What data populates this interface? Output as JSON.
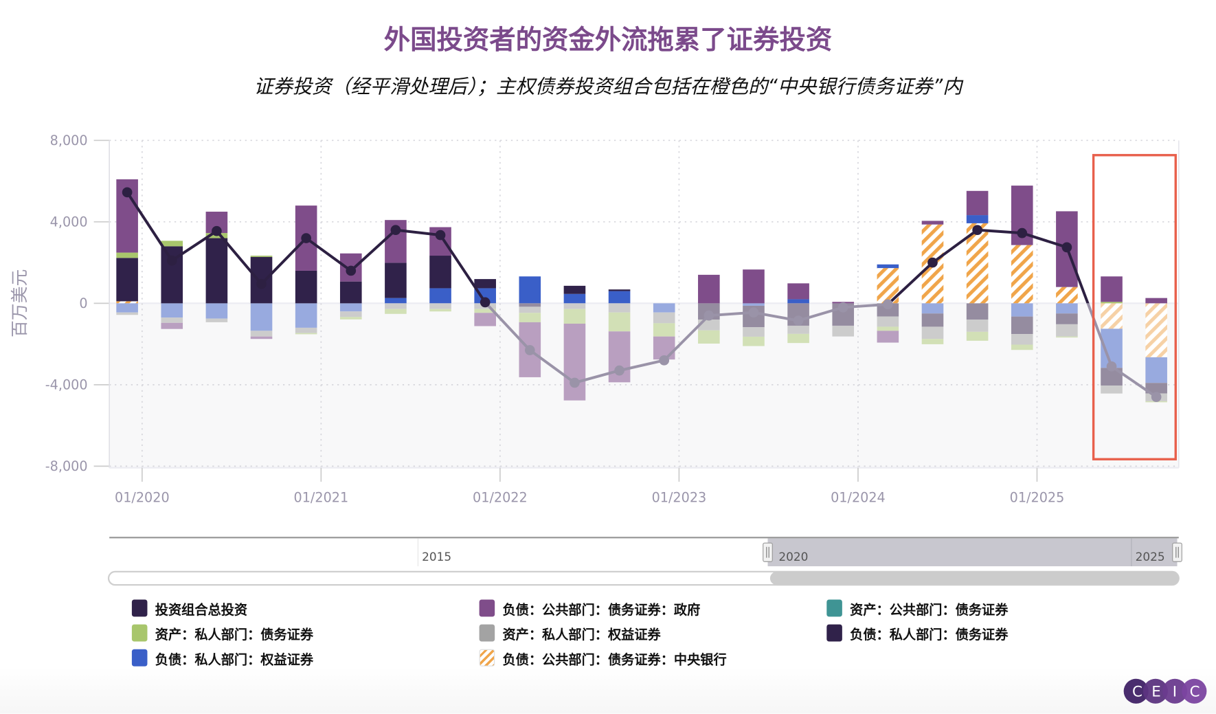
{
  "title": "外国投资者的资金外流拖累了证券投资",
  "subtitle": "证券投资（经平滑处理后）；主权债券投资组合包括在橙色的“中央银行债务证券”内",
  "logo_text": "CEIC",
  "navigator": {
    "labels": [
      "2015",
      "2020",
      "2025"
    ]
  },
  "colors": {
    "title": "#7b4a8b",
    "highlight_box": "#e8604c",
    "total_line_positive": "#2d2042",
    "total_line_negative": "#9a93a8"
  },
  "legend": [
    {
      "key": "total",
      "label": "投资组合总投资",
      "color": "#30224a"
    },
    {
      "key": "gov",
      "label": "负债：公共部门：债务证券：政府",
      "color": "#7f4d8a"
    },
    {
      "key": "pub_asset",
      "label": "资产：公共部门：债务证券",
      "color": "#3f9494"
    },
    {
      "key": "priv_asset_debt",
      "label": "资产：私人部门：债务证券",
      "color": "#a8c66c"
    },
    {
      "key": "priv_asset_eq",
      "label": "资产：私人部门：权益证券",
      "color": "#a3a3a3"
    },
    {
      "key": "priv_liab_debt",
      "label": "负债：私人部门：债务证券",
      "color": "#30224a"
    },
    {
      "key": "priv_liab_eq",
      "label": "负债：私人部门：权益证券",
      "color": "#3a5fc8"
    },
    {
      "key": "cb",
      "label": "负债：公共部门：债务证券：中央银行",
      "color": "#f0a54a",
      "pattern": "hatched"
    }
  ],
  "chart_data": {
    "type": "bar",
    "stacked": true,
    "title": "外国投资者的资金外流拖累了证券投资",
    "ylabel": "百万美元",
    "ylim": [
      -8000,
      8000
    ],
    "yticks": [
      "8,000",
      "4,000",
      "0",
      "-4,000",
      "-8,000"
    ],
    "xticks": [
      "01/2020",
      "01/2021",
      "01/2022",
      "01/2023",
      "01/2024",
      "01/2025"
    ],
    "grid": true,
    "legend_position": "bottom",
    "highlight": "2025-06 to 2025-09",
    "x": [
      "2019-12",
      "2020-03",
      "2020-06",
      "2020-09",
      "2020-12",
      "2021-03",
      "2021-06",
      "2021-09",
      "2021-12",
      "2022-03",
      "2022-06",
      "2022-09",
      "2022-12",
      "2023-03",
      "2023-06",
      "2023-09",
      "2023-12",
      "2024-03",
      "2024-06",
      "2024-09",
      "2024-12",
      "2025-03",
      "2025-06",
      "2025-09"
    ],
    "series": [
      {
        "name": "负债：公共部门：债务证券：中央银行",
        "key": "cb",
        "values": [
          100,
          0,
          0,
          0,
          0,
          0,
          0,
          0,
          0,
          0,
          0,
          0,
          0,
          0,
          0,
          0,
          0,
          1730,
          3870,
          3930,
          2860,
          800,
          -1250,
          -2650
        ]
      },
      {
        "name": "负债：私人部门：权益证券",
        "key": "priv_liab_eq",
        "values": [
          -450,
          -700,
          -750,
          -1350,
          -1200,
          -400,
          260,
          740,
          740,
          1320,
          460,
          600,
          -450,
          0,
          -120,
          200,
          0,
          180,
          -500,
          400,
          -650,
          -500,
          -1920,
          -1260
        ]
      },
      {
        "name": "负债：私人部门：债务证券",
        "key": "priv_liab_debt",
        "values": [
          2130,
          2800,
          3200,
          2280,
          1600,
          1070,
          1730,
          1600,
          450,
          -170,
          400,
          80,
          0,
          -800,
          -1050,
          -1100,
          -1100,
          -650,
          -650,
          -800,
          -860,
          -530,
          -870,
          -520
        ]
      },
      {
        "name": "资产：私人部门：权益证券",
        "key": "priv_asset_eq",
        "values": [
          -120,
          -260,
          -180,
          -280,
          -260,
          -270,
          -280,
          -280,
          -280,
          -300,
          -280,
          -450,
          -530,
          -530,
          -470,
          -400,
          -530,
          -500,
          -600,
          -600,
          -520,
          -600,
          -390,
          -380
        ]
      },
      {
        "name": "资产：私人部门：债务证券",
        "key": "priv_asset_debt",
        "values": [
          260,
          270,
          250,
          60,
          -60,
          -120,
          -240,
          -120,
          -190,
          -460,
          -720,
          -930,
          -650,
          -650,
          -460,
          -450,
          0,
          -200,
          -260,
          -440,
          -260,
          -50,
          70,
          -50
        ]
      },
      {
        "name": "负债：公共部门：债务证券：政府",
        "key": "gov",
        "values": [
          3600,
          -300,
          1050,
          -120,
          3200,
          1380,
          2100,
          1400,
          -650,
          -2700,
          -3770,
          -2500,
          -1130,
          1400,
          1660,
          780,
          70,
          -580,
          180,
          1190,
          2920,
          3720,
          1250,
          260
        ]
      },
      {
        "name": "资产：公共部门：债务证券",
        "key": "pub_asset",
        "values": [
          0,
          0,
          0,
          0,
          0,
          0,
          0,
          0,
          0,
          0,
          0,
          0,
          0,
          0,
          0,
          0,
          0,
          0,
          0,
          0,
          0,
          0,
          0,
          0
        ]
      },
      {
        "name": "投资组合总投资",
        "key": "total",
        "type": "line",
        "values": [
          5450,
          2100,
          3550,
          950,
          3200,
          1600,
          3600,
          3350,
          50,
          -2300,
          -3900,
          -3300,
          -2800,
          -600,
          -450,
          -850,
          -200,
          -50,
          2000,
          3600,
          3450,
          2750,
          -3100,
          -4600
        ]
      }
    ]
  }
}
